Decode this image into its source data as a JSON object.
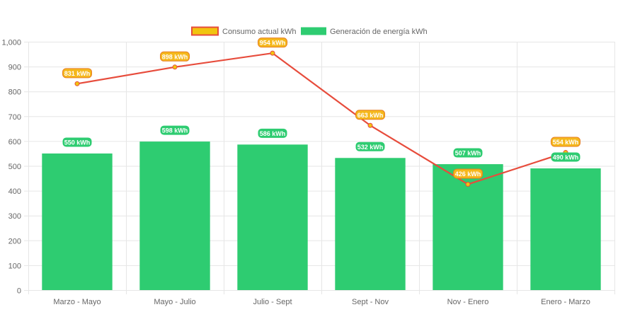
{
  "chart_data": {
    "type": "bar",
    "categories": [
      "Marzo - Mayo",
      "Mayo - Julio",
      "Julio - Sept",
      "Sept - Nov",
      "Nov - Enero",
      "Enero - Marzo"
    ],
    "series": [
      {
        "name": "Consumo actual kWh",
        "kind": "line",
        "values": [
          831,
          898,
          954,
          663,
          426,
          554
        ],
        "labels": [
          "831 kWh",
          "898 kWh",
          "954 kWh",
          "663 kWh",
          "426 kWh",
          "554 kWh"
        ],
        "line_color": "#e74c3c",
        "fill_color": "#f1c40f",
        "label_bg": "#f5b81c",
        "label_border": "#e67e22"
      },
      {
        "name": "Generación de energía kWh",
        "kind": "bar",
        "values": [
          550,
          598,
          586,
          532,
          507,
          490
        ],
        "labels": [
          "550 kWh",
          "598 kWh",
          "586 kWh",
          "532 kWh",
          "507 kWh",
          "490 kWh"
        ],
        "color": "#2ecc71",
        "label_bg": "#2ecc71"
      }
    ],
    "yticks": [
      "0",
      "100",
      "200",
      "300",
      "400",
      "500",
      "600",
      "700",
      "800",
      "900",
      "1,000"
    ],
    "ylim": [
      0,
      1000
    ],
    "grid": true,
    "legend": "top-center"
  }
}
